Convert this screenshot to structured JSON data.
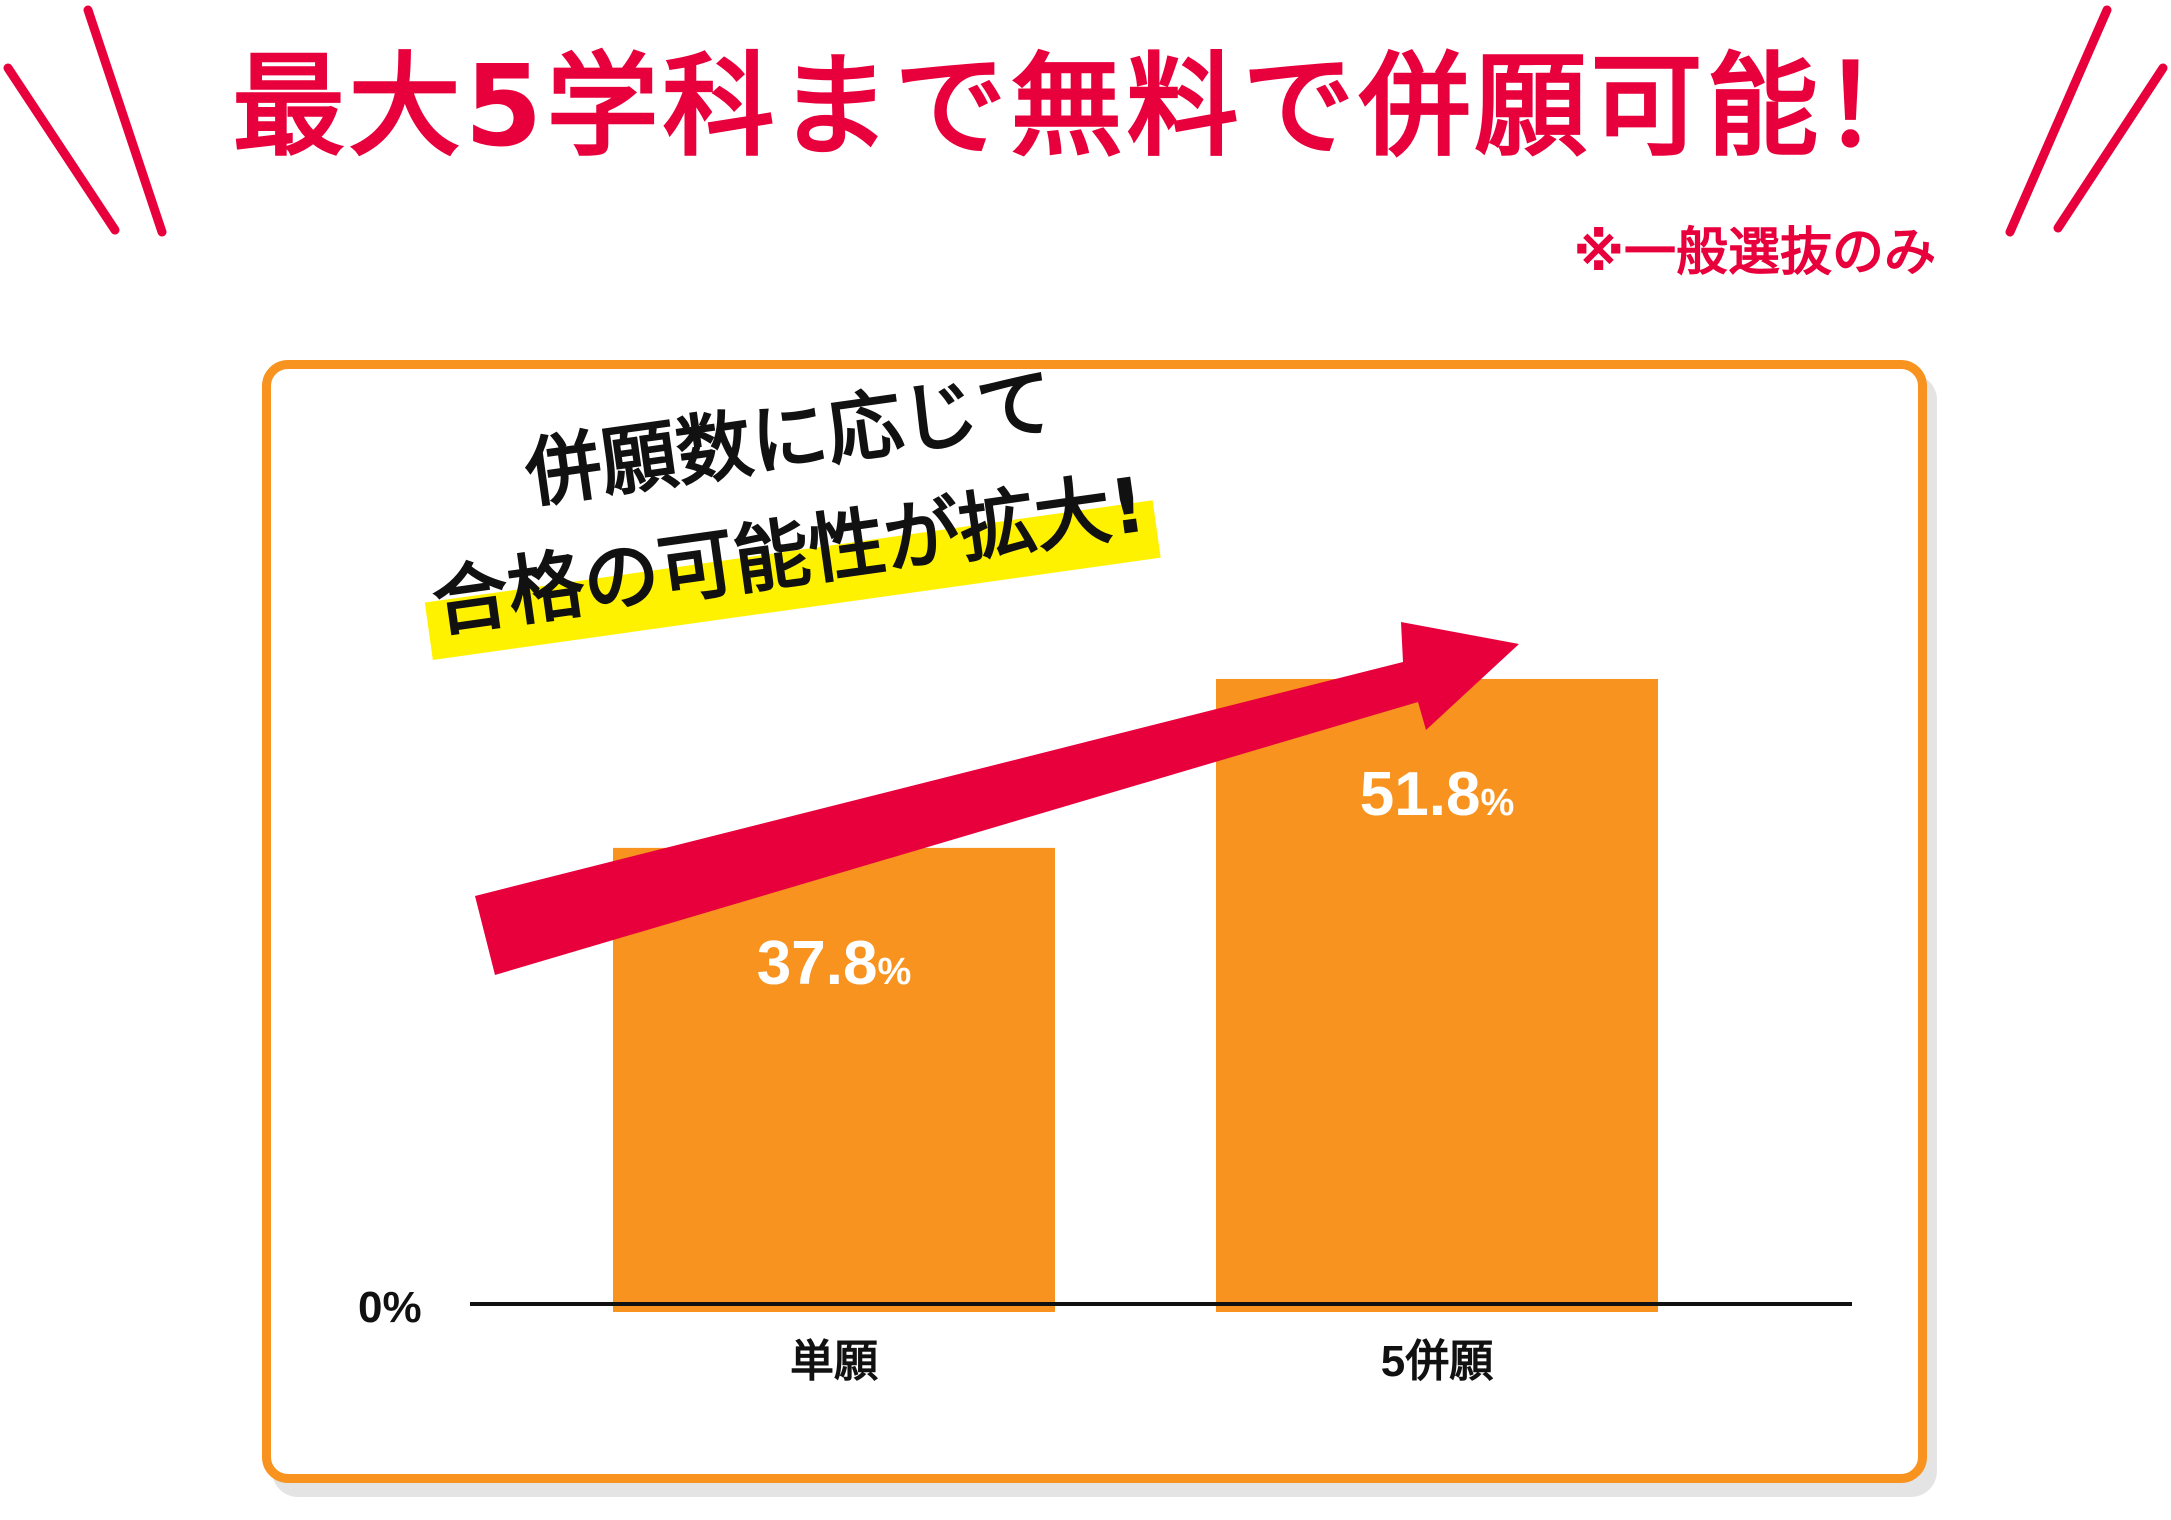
{
  "headline": "最大5学科まで無料で併願可能！",
  "note": "※一般選抜のみ",
  "catch": {
    "line1": "併願数に応じて",
    "line2": "合格の可能性が拡大!"
  },
  "colors": {
    "accent_red": "#e8003d",
    "bar_orange": "#f7931e",
    "highlight_yellow": "#fff200",
    "axis_black": "#111111",
    "label_white": "#ffffff"
  },
  "chart_data": {
    "type": "bar",
    "categories": [
      "単願",
      "5併願"
    ],
    "values": [
      37.8,
      51.8
    ],
    "value_labels": [
      "37.8",
      "51.8"
    ],
    "value_unit": "%",
    "ylim": [
      0,
      60
    ],
    "baseline_label": "0%",
    "grid": false
  }
}
